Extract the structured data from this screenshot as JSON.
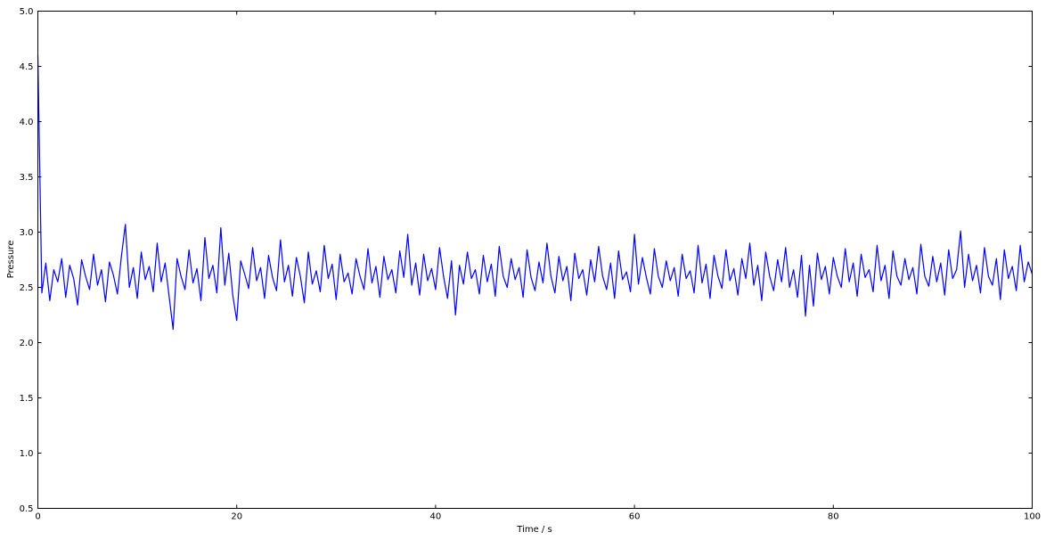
{
  "chart_data": {
    "type": "line",
    "title": "",
    "xlabel": "Time / s",
    "ylabel": "Pressure",
    "xlim": [
      0,
      100
    ],
    "ylim": [
      0.5,
      5.0
    ],
    "xticks": [
      "0",
      "20",
      "40",
      "60",
      "80",
      "100"
    ],
    "yticks": [
      "0.5",
      "1.0",
      "1.5",
      "2.0",
      "2.5",
      "3.0",
      "3.5",
      "4.0",
      "4.5",
      "5.0"
    ],
    "grid": false,
    "line_color": "#0000ff",
    "series": [
      {
        "x": [
          0,
          0.4,
          0.8,
          1.2,
          1.6,
          2,
          2.4,
          2.8,
          3.2,
          3.6,
          4,
          4.4,
          4.8,
          5.2,
          5.6,
          6,
          6.4,
          6.8,
          7.2,
          7.6,
          8,
          8.4,
          8.8,
          9.2,
          9.6,
          10,
          10.4,
          10.8,
          11.2,
          11.6,
          12,
          12.4,
          12.8,
          13.2,
          13.6,
          14,
          14.4,
          14.8,
          15.2,
          15.6,
          16,
          16.4,
          16.8,
          17.2,
          17.6,
          18,
          18.4,
          18.8,
          19.2,
          19.6,
          20,
          20.4,
          20.8,
          21.2,
          21.6,
          22,
          22.4,
          22.8,
          23.2,
          23.6,
          24,
          24.4,
          24.8,
          25.2,
          25.6,
          26,
          26.4,
          26.8,
          27.2,
          27.6,
          28,
          28.4,
          28.8,
          29.2,
          29.6,
          30,
          30.4,
          30.8,
          31.2,
          31.6,
          32,
          32.4,
          32.8,
          33.2,
          33.6,
          34,
          34.4,
          34.8,
          35.2,
          35.6,
          36,
          36.4,
          36.8,
          37.2,
          37.6,
          38,
          38.4,
          38.8,
          39.2,
          39.6,
          40,
          40.4,
          40.8,
          41.2,
          41.6,
          42,
          42.4,
          42.8,
          43.2,
          43.6,
          44,
          44.4,
          44.8,
          45.2,
          45.6,
          46,
          46.4,
          46.8,
          47.2,
          47.6,
          48,
          48.4,
          48.8,
          49.2,
          49.6,
          50,
          50.4,
          50.8,
          51.2,
          51.6,
          52,
          52.4,
          52.8,
          53.2,
          53.6,
          54,
          54.4,
          54.8,
          55.2,
          55.6,
          56,
          56.4,
          56.8,
          57.2,
          57.6,
          58,
          58.4,
          58.8,
          59.2,
          59.6,
          60,
          60.4,
          60.8,
          61.2,
          61.6,
          62,
          62.4,
          62.8,
          63.2,
          63.6,
          64,
          64.4,
          64.8,
          65.2,
          65.6,
          66,
          66.4,
          66.8,
          67.2,
          67.6,
          68,
          68.4,
          68.8,
          69.2,
          69.6,
          70,
          70.4,
          70.8,
          71.2,
          71.6,
          72,
          72.4,
          72.8,
          73.2,
          73.6,
          74,
          74.4,
          74.8,
          75.2,
          75.6,
          76,
          76.4,
          76.8,
          77.2,
          77.6,
          78,
          78.4,
          78.8,
          79.2,
          79.6,
          80,
          80.4,
          80.8,
          81.2,
          81.6,
          82,
          82.4,
          82.8,
          83.2,
          83.6,
          84,
          84.4,
          84.8,
          85.2,
          85.6,
          86,
          86.4,
          86.8,
          87.2,
          87.6,
          88,
          88.4,
          88.8,
          89.2,
          89.6,
          90,
          90.4,
          90.8,
          91.2,
          91.6,
          92,
          92.4,
          92.8,
          93.2,
          93.6,
          94,
          94.4,
          94.8,
          95.2,
          95.6,
          96,
          96.4,
          96.8,
          97.2,
          97.6,
          98,
          98.4,
          98.8,
          99.2,
          99.6,
          100
        ],
        "y": [
          4.6,
          2.45,
          2.72,
          2.38,
          2.66,
          2.55,
          2.76,
          2.41,
          2.7,
          2.58,
          2.34,
          2.75,
          2.6,
          2.48,
          2.8,
          2.52,
          2.66,
          2.37,
          2.73,
          2.61,
          2.44,
          2.78,
          3.07,
          2.5,
          2.68,
          2.4,
          2.82,
          2.57,
          2.69,
          2.46,
          2.9,
          2.55,
          2.72,
          2.42,
          2.12,
          2.76,
          2.6,
          2.48,
          2.84,
          2.54,
          2.67,
          2.38,
          2.95,
          2.58,
          2.7,
          2.45,
          3.04,
          2.52,
          2.81,
          2.43,
          2.2,
          2.74,
          2.62,
          2.49,
          2.86,
          2.56,
          2.68,
          2.4,
          2.79,
          2.59,
          2.47,
          2.93,
          2.55,
          2.7,
          2.42,
          2.77,
          2.6,
          2.36,
          2.82,
          2.53,
          2.65,
          2.46,
          2.88,
          2.58,
          2.71,
          2.39,
          2.8,
          2.55,
          2.63,
          2.44,
          2.76,
          2.6,
          2.48,
          2.85,
          2.54,
          2.69,
          2.41,
          2.78,
          2.57,
          2.66,
          2.45,
          2.83,
          2.59,
          2.98,
          2.52,
          2.72,
          2.43,
          2.8,
          2.56,
          2.67,
          2.48,
          2.86,
          2.6,
          2.4,
          2.74,
          2.25,
          2.7,
          2.53,
          2.82,
          2.58,
          2.66,
          2.44,
          2.79,
          2.55,
          2.71,
          2.42,
          2.87,
          2.6,
          2.5,
          2.76,
          2.57,
          2.68,
          2.41,
          2.84,
          2.59,
          2.47,
          2.73,
          2.54,
          2.9,
          2.6,
          2.45,
          2.78,
          2.56,
          2.69,
          2.38,
          2.81,
          2.58,
          2.66,
          2.43,
          2.75,
          2.55,
          2.87,
          2.6,
          2.48,
          2.72,
          2.4,
          2.83,
          2.57,
          2.64,
          2.46,
          2.98,
          2.53,
          2.77,
          2.59,
          2.44,
          2.85,
          2.6,
          2.5,
          2.74,
          2.56,
          2.68,
          2.42,
          2.8,
          2.58,
          2.65,
          2.45,
          2.88,
          2.54,
          2.71,
          2.4,
          2.79,
          2.6,
          2.49,
          2.84,
          2.56,
          2.67,
          2.43,
          2.76,
          2.58,
          2.9,
          2.52,
          2.7,
          2.38,
          2.82,
          2.6,
          2.47,
          2.75,
          2.55,
          2.86,
          2.5,
          2.66,
          2.41,
          2.79,
          2.24,
          2.7,
          2.33,
          2.81,
          2.57,
          2.69,
          2.44,
          2.77,
          2.6,
          2.5,
          2.85,
          2.55,
          2.72,
          2.42,
          2.8,
          2.59,
          2.66,
          2.46,
          2.88,
          2.56,
          2.7,
          2.4,
          2.83,
          2.6,
          2.52,
          2.76,
          2.57,
          2.68,
          2.44,
          2.89,
          2.6,
          2.51,
          2.78,
          2.55,
          2.72,
          2.43,
          2.84,
          2.58,
          2.66,
          3.01,
          2.5,
          2.8,
          2.56,
          2.7,
          2.45,
          2.86,
          2.6,
          2.52,
          2.76,
          2.39,
          2.84,
          2.58,
          2.69,
          2.47,
          2.88,
          2.55,
          2.73,
          2.62
        ]
      }
    ]
  }
}
